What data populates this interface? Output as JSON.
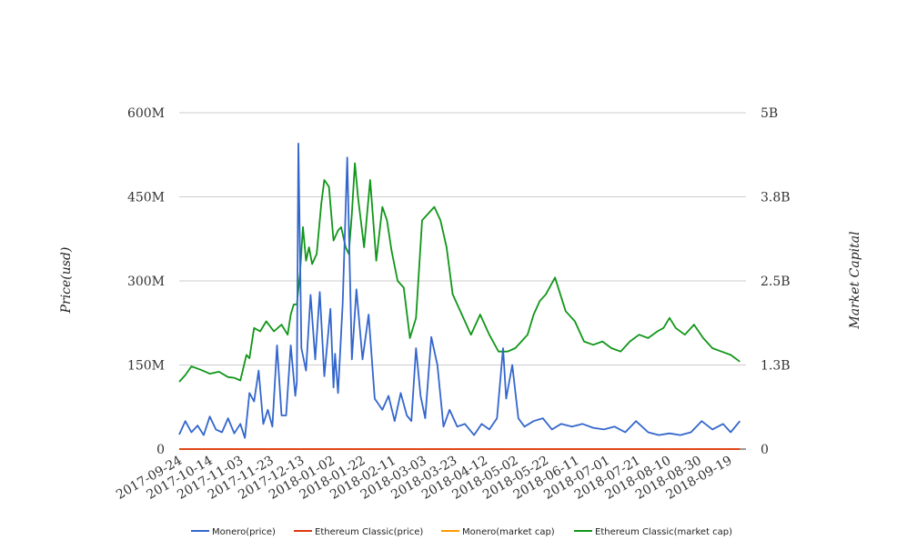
{
  "chart_data": {
    "type": "line",
    "title": "",
    "ylabel_left": "Price(usd)",
    "ylabel_right": "Market Capital",
    "left_axis": {
      "ylim": [
        0,
        600000000
      ],
      "ticks": [
        0,
        150000000,
        300000000,
        450000000,
        600000000
      ],
      "tick_labels": [
        "0",
        "150M",
        "300M",
        "450M",
        "600M"
      ]
    },
    "right_axis": {
      "ylim": [
        0,
        5000000000
      ],
      "ticks": [
        0,
        1250000000,
        2500000000,
        3750000000,
        5000000000
      ],
      "tick_labels": [
        "0",
        "1.3B",
        "2.5B",
        "3.8B",
        "5B"
      ]
    },
    "xlim": [
      "2017-09-24",
      "2018-09-30"
    ],
    "x_tick_labels": [
      "2017-09-24",
      "2017-10-14",
      "2017-11-03",
      "2017-11-23",
      "2017-12-13",
      "2018-01-02",
      "2018-01-22",
      "2018-02-11",
      "2018-03-03",
      "2018-03-23",
      "2018-04-12",
      "2018-05-02",
      "2018-05-22",
      "2018-06-11",
      "2018-07-01",
      "2018-07-21",
      "2018-08-10",
      "2018-08-30",
      "2018-09-19"
    ],
    "grid": true,
    "legend_position": "bottom",
    "series": [
      {
        "name": "Monero(price)",
        "color": "#3366cc",
        "axis": "left",
        "x": [
          "2017-09-24",
          "2017-09-28",
          "2017-10-02",
          "2017-10-06",
          "2017-10-10",
          "2017-10-14",
          "2017-10-18",
          "2017-10-22",
          "2017-10-26",
          "2017-10-30",
          "2017-11-03",
          "2017-11-06",
          "2017-11-09",
          "2017-11-12",
          "2017-11-15",
          "2017-11-18",
          "2017-11-21",
          "2017-11-24",
          "2017-11-27",
          "2017-11-30",
          "2017-12-03",
          "2017-12-06",
          "2017-12-09",
          "2017-12-10",
          "2017-12-11",
          "2017-12-13",
          "2017-12-16",
          "2017-12-19",
          "2017-12-22",
          "2017-12-25",
          "2017-12-28",
          "2018-01-01",
          "2018-01-03",
          "2018-01-04",
          "2018-01-06",
          "2018-01-09",
          "2018-01-12",
          "2018-01-15",
          "2018-01-18",
          "2018-01-22",
          "2018-01-26",
          "2018-01-30",
          "2018-02-04",
          "2018-02-08",
          "2018-02-12",
          "2018-02-16",
          "2018-02-20",
          "2018-02-23",
          "2018-02-26",
          "2018-03-01",
          "2018-03-04",
          "2018-03-08",
          "2018-03-12",
          "2018-03-16",
          "2018-03-20",
          "2018-03-25",
          "2018-03-30",
          "2018-04-05",
          "2018-04-10",
          "2018-04-15",
          "2018-04-20",
          "2018-04-24",
          "2018-04-26",
          "2018-04-30",
          "2018-05-04",
          "2018-05-08",
          "2018-05-14",
          "2018-05-20",
          "2018-05-26",
          "2018-06-01",
          "2018-06-08",
          "2018-06-15",
          "2018-06-22",
          "2018-06-29",
          "2018-07-06",
          "2018-07-13",
          "2018-07-20",
          "2018-07-28",
          "2018-08-04",
          "2018-08-11",
          "2018-08-18",
          "2018-08-25",
          "2018-09-01",
          "2018-09-08",
          "2018-09-15",
          "2018-09-20",
          "2018-09-26"
        ],
        "y": [
          26000000,
          50000000,
          30000000,
          42000000,
          25000000,
          58000000,
          35000000,
          30000000,
          55000000,
          28000000,
          45000000,
          20000000,
          100000000,
          85000000,
          140000000,
          45000000,
          70000000,
          40000000,
          185000000,
          60000000,
          60000000,
          185000000,
          95000000,
          120000000,
          545000000,
          180000000,
          140000000,
          275000000,
          160000000,
          280000000,
          130000000,
          250000000,
          110000000,
          170000000,
          100000000,
          260000000,
          520000000,
          160000000,
          285000000,
          160000000,
          240000000,
          90000000,
          70000000,
          95000000,
          50000000,
          100000000,
          60000000,
          50000000,
          180000000,
          95000000,
          55000000,
          200000000,
          150000000,
          40000000,
          70000000,
          40000000,
          45000000,
          25000000,
          45000000,
          35000000,
          55000000,
          180000000,
          90000000,
          150000000,
          55000000,
          40000000,
          50000000,
          55000000,
          35000000,
          45000000,
          40000000,
          45000000,
          38000000,
          35000000,
          40000000,
          30000000,
          50000000,
          30000000,
          25000000,
          28000000,
          25000000,
          30000000,
          50000000,
          35000000,
          45000000,
          30000000,
          50000000
        ]
      },
      {
        "name": "Ethereum Classic(price)",
        "color": "#dc3912",
        "axis": "left",
        "x": [
          "2017-09-24",
          "2018-09-26"
        ],
        "y": [
          20,
          20
        ]
      },
      {
        "name": "Monero(market cap)",
        "color": "#ff9900",
        "axis": "right",
        "x": [
          "2017-09-24",
          "2018-09-26"
        ],
        "y": [
          0,
          0
        ]
      },
      {
        "name": "Ethereum Classic(market cap)",
        "color": "#109618",
        "axis": "right",
        "x": [
          "2017-09-24",
          "2017-09-28",
          "2017-10-02",
          "2017-10-08",
          "2017-10-14",
          "2017-10-20",
          "2017-10-26",
          "2017-10-30",
          "2017-11-03",
          "2017-11-07",
          "2017-11-09",
          "2017-11-12",
          "2017-11-16",
          "2017-11-20",
          "2017-11-25",
          "2017-11-30",
          "2017-12-04",
          "2017-12-06",
          "2017-12-08",
          "2017-12-10",
          "2017-12-12",
          "2017-12-14",
          "2017-12-16",
          "2017-12-18",
          "2017-12-20",
          "2017-12-23",
          "2017-12-26",
          "2017-12-28",
          "2017-12-31",
          "2018-01-03",
          "2018-01-06",
          "2018-01-08",
          "2018-01-11",
          "2018-01-13",
          "2018-01-15",
          "2018-01-17",
          "2018-01-19",
          "2018-01-23",
          "2018-01-27",
          "2018-01-31",
          "2018-02-04",
          "2018-02-07",
          "2018-02-10",
          "2018-02-14",
          "2018-02-18",
          "2018-02-22",
          "2018-02-26",
          "2018-03-02",
          "2018-03-06",
          "2018-03-10",
          "2018-03-14",
          "2018-03-18",
          "2018-03-22",
          "2018-03-28",
          "2018-04-03",
          "2018-04-09",
          "2018-04-15",
          "2018-04-21",
          "2018-04-27",
          "2018-05-02",
          "2018-05-06",
          "2018-05-10",
          "2018-05-14",
          "2018-05-18",
          "2018-05-22",
          "2018-05-28",
          "2018-06-04",
          "2018-06-10",
          "2018-06-16",
          "2018-06-22",
          "2018-06-28",
          "2018-07-04",
          "2018-07-10",
          "2018-07-16",
          "2018-07-22",
          "2018-07-28",
          "2018-08-03",
          "2018-08-07",
          "2018-08-11",
          "2018-08-15",
          "2018-08-21",
          "2018-08-27",
          "2018-09-02",
          "2018-09-08",
          "2018-09-14",
          "2018-09-20",
          "2018-09-26"
        ],
        "y": [
          1000000000,
          1100000000,
          1230000000,
          1180000000,
          1120000000,
          1150000000,
          1070000000,
          1060000000,
          1020000000,
          1400000000,
          1350000000,
          1800000000,
          1750000000,
          1900000000,
          1750000000,
          1850000000,
          1700000000,
          2000000000,
          2150000000,
          2150000000,
          2600000000,
          3300000000,
          2800000000,
          3000000000,
          2750000000,
          2900000000,
          3650000000,
          4000000000,
          3900000000,
          3100000000,
          3250000000,
          3300000000,
          3000000000,
          2900000000,
          3500000000,
          4250000000,
          3750000000,
          3000000000,
          4000000000,
          2800000000,
          3600000000,
          3400000000,
          2950000000,
          2500000000,
          2400000000,
          1650000000,
          1950000000,
          3400000000,
          3500000000,
          3600000000,
          3400000000,
          3000000000,
          2300000000,
          2000000000,
          1700000000,
          2000000000,
          1700000000,
          1450000000,
          1450000000,
          1500000000,
          1600000000,
          1700000000,
          2000000000,
          2200000000,
          2300000000,
          2550000000,
          2050000000,
          1900000000,
          1600000000,
          1550000000,
          1600000000,
          1500000000,
          1450000000,
          1600000000,
          1700000000,
          1650000000,
          1750000000,
          1800000000,
          1950000000,
          1800000000,
          1700000000,
          1850000000,
          1650000000,
          1500000000,
          1450000000,
          1400000000,
          1300000000
        ]
      }
    ]
  }
}
